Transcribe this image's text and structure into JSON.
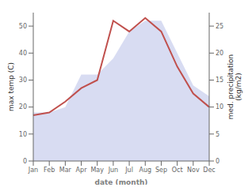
{
  "chart_data": {
    "type": "line",
    "categories": [
      "Jan",
      "Feb",
      "Mar",
      "Apr",
      "May",
      "Jun",
      "Jul",
      "Aug",
      "Sep",
      "Oct",
      "Nov",
      "Dec"
    ],
    "series": [
      {
        "type": "area",
        "axis": "y2",
        "color": "#b8c0e8",
        "values": [
          9,
          9,
          10,
          16,
          16,
          19,
          24,
          26,
          26,
          20,
          14,
          12
        ]
      },
      {
        "type": "line",
        "color": "#c0504d",
        "values": [
          17,
          18,
          22,
          27,
          30,
          52,
          48,
          53,
          48,
          35,
          25,
          20
        ]
      }
    ],
    "xlabel": "date (month)",
    "ylabel": "max temp (C)",
    "y2label": "med. precipitation\n(kg/m2)",
    "ylim": [
      0,
      55
    ],
    "yticks": [
      0,
      10,
      20,
      30,
      40,
      50
    ],
    "y2lim": [
      0,
      27.5
    ],
    "y2ticks": [
      0,
      5,
      10,
      15,
      20,
      25
    ],
    "grid": false
  }
}
